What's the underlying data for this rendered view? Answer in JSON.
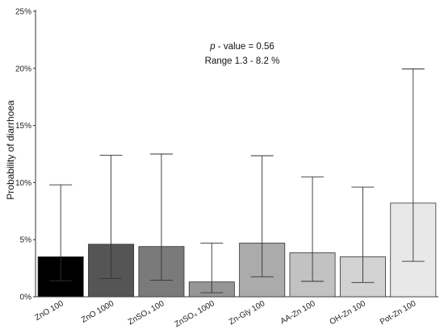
{
  "chart_data": {
    "type": "bar",
    "title": "",
    "xlabel": "",
    "ylabel": "Probability of diarrhoea",
    "ylim": [
      0,
      25
    ],
    "yticks": [
      0,
      5,
      10,
      15,
      20,
      25
    ],
    "ytick_labels": [
      "0%",
      "5%",
      "10%",
      "15%",
      "20%",
      "25%"
    ],
    "grid": false,
    "categories": [
      "ZnO 100",
      "ZnO 1000",
      "ZnSO₄ 100",
      "ZnSO₄ 1000",
      "Zn-Gly 100",
      "AA-Zn 100",
      "OH-Zn 100",
      "Pot-Zn 100"
    ],
    "values": [
      3.5,
      4.6,
      4.4,
      1.3,
      4.7,
      3.85,
      3.5,
      8.2
    ],
    "error_low": [
      1.4,
      1.6,
      1.45,
      0.35,
      1.75,
      1.35,
      1.25,
      3.1
    ],
    "error_high": [
      9.8,
      12.4,
      12.5,
      4.7,
      12.35,
      10.5,
      9.6,
      19.95
    ],
    "bar_colors": [
      "#000000",
      "#555555",
      "#7a7a7a",
      "#959595",
      "#ababab",
      "#c2c2c2",
      "#d2d2d2",
      "#e8e8e8"
    ],
    "annotations": {
      "pvalue_italic": "p",
      "pvalue_rest": " - value = 0.56",
      "range": "Range 1.3 - 8.2 %"
    }
  }
}
